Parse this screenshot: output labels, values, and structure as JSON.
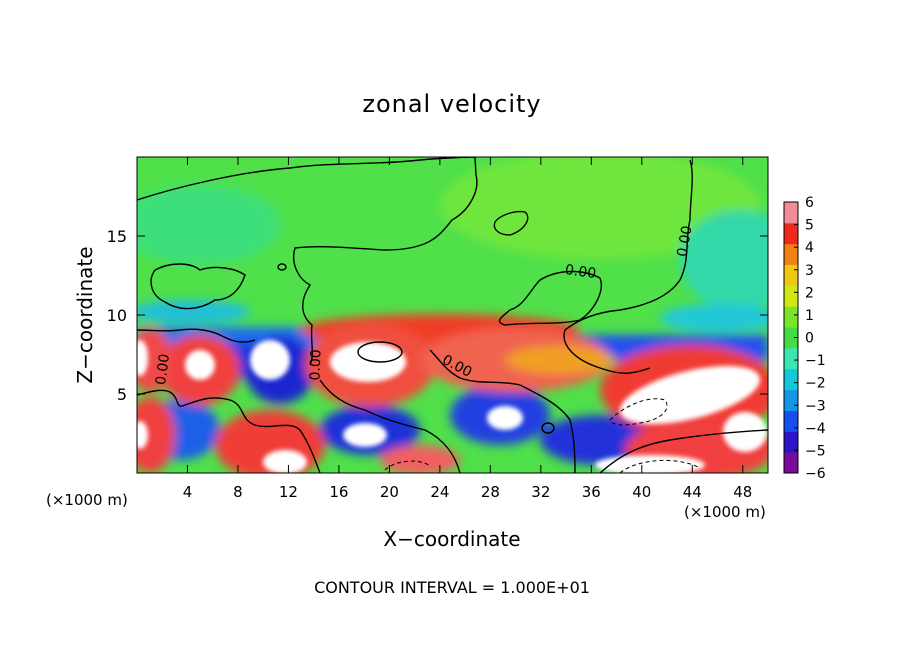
{
  "chart_data": {
    "type": "heatmap",
    "title": "zonal velocity",
    "xlabel": "X−coordinate",
    "ylabel": "Z−coordinate",
    "x_unit_left": "(×1000 m)",
    "x_unit_right": "(×1000 m)",
    "xlim": [
      0,
      50
    ],
    "ylim": [
      0,
      20
    ],
    "x_ticks": [
      4,
      8,
      12,
      16,
      20,
      24,
      28,
      32,
      36,
      40,
      44,
      48
    ],
    "x_tick_labels": [
      "4",
      "8",
      "12",
      "16",
      "20",
      "24",
      "28",
      "32",
      "36",
      "40",
      "44",
      "48"
    ],
    "y_ticks": [
      5,
      10,
      15
    ],
    "y_tick_labels": [
      "5",
      "10",
      "15"
    ],
    "colorbar": {
      "min": -6,
      "max": 6,
      "ticks": [
        "6",
        "5",
        "4",
        "3",
        "2",
        "1",
        "0",
        "−1",
        "−2",
        "−3",
        "−4",
        "−5",
        "−6"
      ],
      "colors": [
        "#7a0a9a",
        "#2a14c8",
        "#1450f0",
        "#1496e6",
        "#14c8dc",
        "#3ce6b4",
        "#46dc46",
        "#78e628",
        "#d2e614",
        "#f0c814",
        "#f08214",
        "#f0281e",
        "#f08c96"
      ]
    },
    "contour_labels": [
      "0.00",
      "0.00",
      "0.00",
      "0.00",
      "0.00"
    ],
    "footer": "CONTOUR INTERVAL = 1.000E+01",
    "regions": [
      {
        "kind": "background",
        "z_range": [
          9,
          20
        ],
        "value": 0.2
      },
      {
        "kind": "band",
        "z_range": [
          7.5,
          9.5
        ],
        "value": -2.8
      },
      {
        "kind": "blob",
        "x": 20,
        "z": 7.5,
        "rx": 3.2,
        "rz": 2.3,
        "value": 5.5
      },
      {
        "kind": "blob",
        "x": 30,
        "z": 7.3,
        "rx": 4,
        "rz": 1.8,
        "value": 4.2
      },
      {
        "kind": "blob",
        "x": 24,
        "z": 9.5,
        "rx": 6,
        "rz": 0.6,
        "value": 3.5
      },
      {
        "kind": "blob",
        "x": 42.5,
        "z": 5.2,
        "rx": 6,
        "rz": 2.2,
        "value": 6
      },
      {
        "kind": "blob",
        "x": 5,
        "z": 6.6,
        "rx": 1.7,
        "rz": 1.6,
        "value": 6
      },
      {
        "kind": "blob",
        "x": 0.8,
        "z": 6.8,
        "rx": 1,
        "rz": 1.4,
        "value": 6
      },
      {
        "kind": "blob",
        "x": 10.3,
        "z": 6.5,
        "rx": 2.5,
        "rz": 1.8,
        "value": -5
      },
      {
        "kind": "blob",
        "x": 26.5,
        "z": 3.5,
        "rx": 2.5,
        "rz": 1.6,
        "value": -4
      },
      {
        "kind": "blob",
        "x": 1,
        "z": 2.5,
        "rx": 2,
        "rz": 2,
        "value": 5.5
      },
      {
        "kind": "blob",
        "x": 10.5,
        "z": 2,
        "rx": 3,
        "rz": 2,
        "value": 6
      },
      {
        "kind": "blob",
        "x": 20,
        "z": 2.5,
        "rx": 3,
        "rz": 1.5,
        "value": -4
      },
      {
        "kind": "blob",
        "x": 45,
        "z": 2.5,
        "rx": 5,
        "rz": 1.8,
        "value": 5.8
      }
    ]
  }
}
